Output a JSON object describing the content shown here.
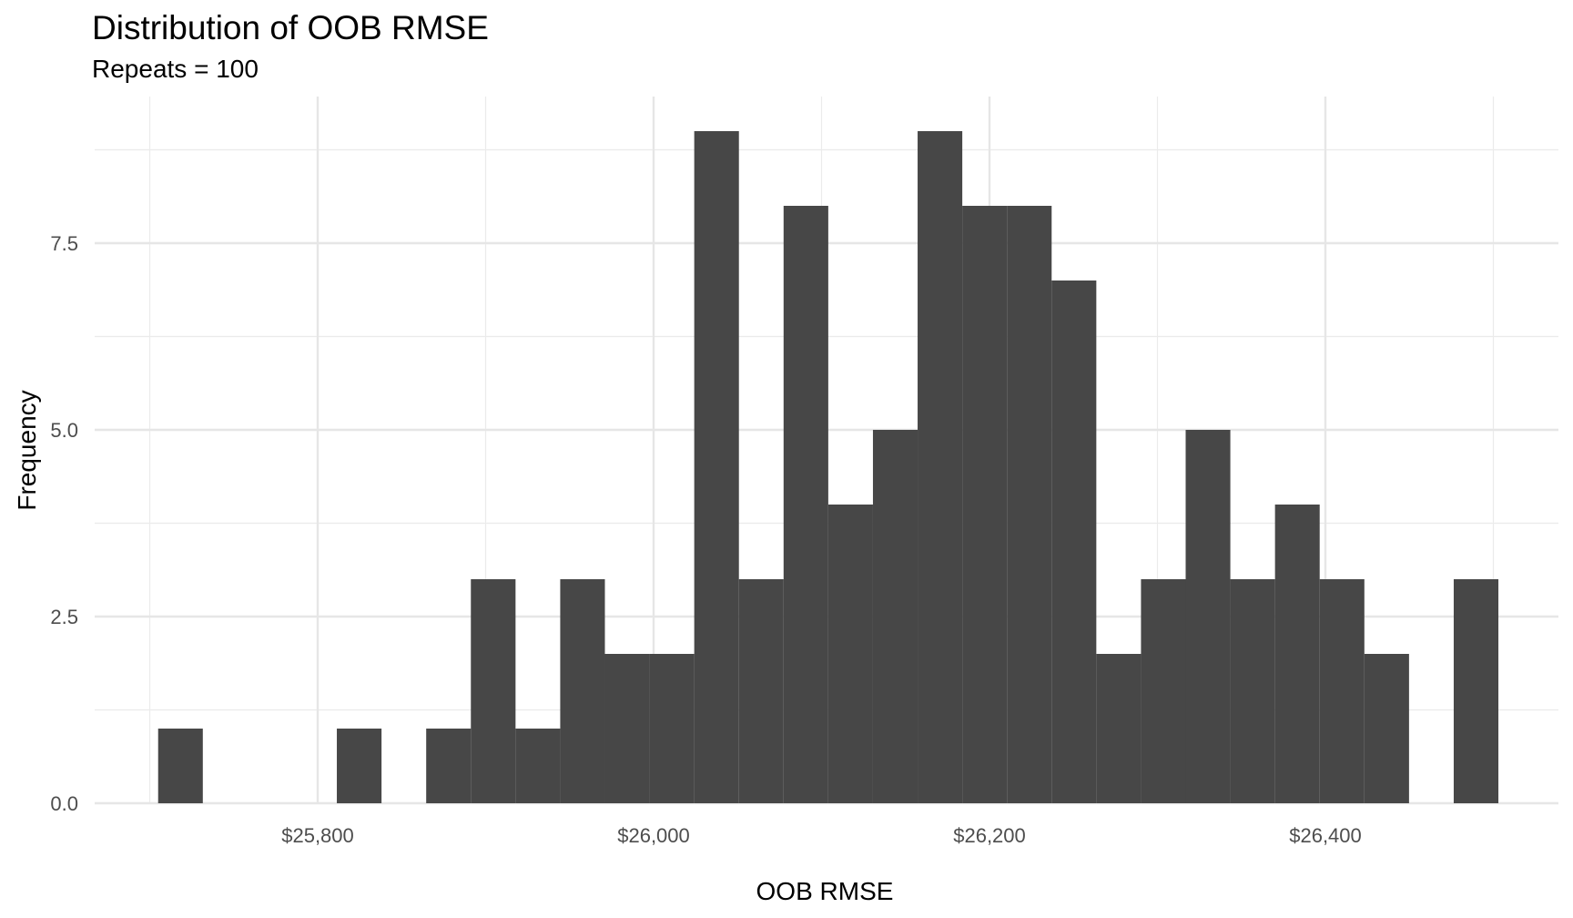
{
  "chart_data": {
    "type": "bar",
    "title": "Distribution of OOB RMSE",
    "subtitle": "Repeats = 100",
    "xlabel": "OOB RMSE",
    "ylabel": "Frequency",
    "xlim": [
      25700,
      26500
    ],
    "ylim": [
      0,
      9
    ],
    "x_ticks": [
      25800,
      26000,
      26200,
      26400
    ],
    "x_tick_labels": [
      "$25,800",
      "$26,000",
      "$26,200",
      "$26,400"
    ],
    "y_ticks": [
      0,
      2.5,
      5,
      7.5
    ],
    "y_tick_labels": [
      "0.0",
      "2.5",
      "5.0",
      "7.5"
    ],
    "bin_width": 26.6,
    "bins": [
      {
        "start": 25705,
        "end": 25731.6,
        "count": 1
      },
      {
        "start": 25731.6,
        "end": 25758.2,
        "count": 0
      },
      {
        "start": 25758.2,
        "end": 25784.8,
        "count": 0
      },
      {
        "start": 25784.8,
        "end": 25811.4,
        "count": 0
      },
      {
        "start": 25811.4,
        "end": 25838,
        "count": 1
      },
      {
        "start": 25838,
        "end": 25864.6,
        "count": 0
      },
      {
        "start": 25864.6,
        "end": 25891.2,
        "count": 1
      },
      {
        "start": 25891.2,
        "end": 25917.8,
        "count": 3
      },
      {
        "start": 25917.8,
        "end": 25944.4,
        "count": 1
      },
      {
        "start": 25944.4,
        "end": 25971,
        "count": 3
      },
      {
        "start": 25971,
        "end": 25997.6,
        "count": 2
      },
      {
        "start": 25997.6,
        "end": 26024.2,
        "count": 2
      },
      {
        "start": 26024.2,
        "end": 26050.8,
        "count": 9
      },
      {
        "start": 26050.8,
        "end": 26077.4,
        "count": 3
      },
      {
        "start": 26077.4,
        "end": 26104,
        "count": 8
      },
      {
        "start": 26104,
        "end": 26130.6,
        "count": 4
      },
      {
        "start": 26130.6,
        "end": 26157.2,
        "count": 5
      },
      {
        "start": 26157.2,
        "end": 26183.8,
        "count": 9
      },
      {
        "start": 26183.8,
        "end": 26210.4,
        "count": 8
      },
      {
        "start": 26210.4,
        "end": 26237,
        "count": 8
      },
      {
        "start": 26237,
        "end": 26263.6,
        "count": 7
      },
      {
        "start": 26263.6,
        "end": 26290.2,
        "count": 2
      },
      {
        "start": 26290.2,
        "end": 26316.8,
        "count": 3
      },
      {
        "start": 26316.8,
        "end": 26343.4,
        "count": 5
      },
      {
        "start": 26343.4,
        "end": 26370,
        "count": 3
      },
      {
        "start": 26370,
        "end": 26396.6,
        "count": 4
      },
      {
        "start": 26396.6,
        "end": 26423.2,
        "count": 3
      },
      {
        "start": 26423.2,
        "end": 26449.8,
        "count": 2
      },
      {
        "start": 26449.8,
        "end": 26476.4,
        "count": 0
      },
      {
        "start": 26476.4,
        "end": 26503,
        "count": 3
      }
    ],
    "bar_color": "#474747",
    "grid": true,
    "legend": "none"
  }
}
